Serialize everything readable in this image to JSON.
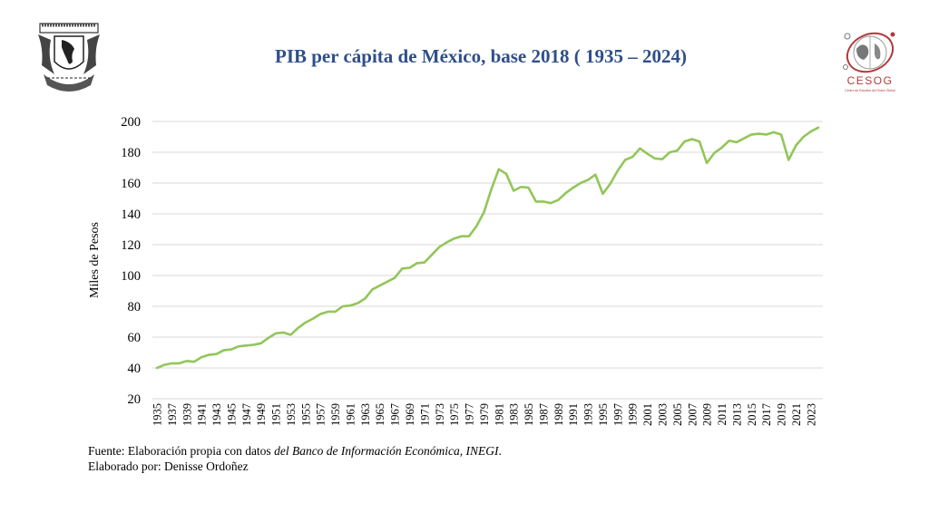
{
  "header": {
    "title": "PIB per cápita de México, base 2018 ( 1935 – 2024)",
    "left_logo": "unam-crest-logo",
    "right_logo": "cesog-logo",
    "right_logo_text": "CESOG",
    "right_logo_subtext": "Centro de Estudios del Orden Global"
  },
  "footer": {
    "source_prefix": "Fuente: Elaboración propia con datos ",
    "source_italic": "del Banco de Información Económica, INEGI",
    "source_suffix": ".",
    "author": "Elaborado por: Denisse Ordoñez"
  },
  "colors": {
    "line": "#92c65a",
    "title": "#2f4f8a",
    "grid": "#d9d9d9"
  },
  "chart_data": {
    "type": "line",
    "title": "PIB per cápita de México, base 2018 ( 1935 – 2024)",
    "xlabel": "",
    "ylabel": "Miles de Pesos",
    "ylim": [
      20,
      200
    ],
    "yticks": [
      20,
      40,
      60,
      80,
      100,
      120,
      140,
      160,
      180,
      200
    ],
    "grid": true,
    "legend": "none",
    "x": [
      1935,
      1936,
      1937,
      1938,
      1939,
      1940,
      1941,
      1942,
      1943,
      1944,
      1945,
      1946,
      1947,
      1948,
      1949,
      1950,
      1951,
      1952,
      1953,
      1954,
      1955,
      1956,
      1957,
      1958,
      1959,
      1960,
      1961,
      1962,
      1963,
      1964,
      1965,
      1966,
      1967,
      1968,
      1969,
      1970,
      1971,
      1972,
      1973,
      1974,
      1975,
      1976,
      1977,
      1978,
      1979,
      1980,
      1981,
      1982,
      1983,
      1984,
      1985,
      1986,
      1987,
      1988,
      1989,
      1990,
      1991,
      1992,
      1993,
      1994,
      1995,
      1996,
      1997,
      1998,
      1999,
      2000,
      2001,
      2002,
      2003,
      2004,
      2005,
      2006,
      2007,
      2008,
      2009,
      2010,
      2011,
      2012,
      2013,
      2014,
      2015,
      2016,
      2017,
      2018,
      2019,
      2020,
      2021,
      2022,
      2023,
      2024
    ],
    "xtick_labels": [
      "1935",
      "1937",
      "1939",
      "1941",
      "1943",
      "1945",
      "1947",
      "1949",
      "1951",
      "1953",
      "1955",
      "1957",
      "1959",
      "1961",
      "1963",
      "1965",
      "1967",
      "1969",
      "1971",
      "1973",
      "1975",
      "1977",
      "1979",
      "1981",
      "1983",
      "1985",
      "1987",
      "1989",
      "1991",
      "1993",
      "1995",
      "1997",
      "1999",
      "2001",
      "2003",
      "2005",
      "2007",
      "2009",
      "2011",
      "2013",
      "2015",
      "2017",
      "2019",
      "2021",
      "2023"
    ],
    "series": [
      {
        "name": "PIB per cápita",
        "values": [
          40,
          42,
          43,
          43,
          44.5,
          44,
          47,
          48.5,
          49,
          51.5,
          52,
          54,
          54.5,
          55,
          56,
          59.5,
          62.5,
          63,
          61.5,
          66,
          69.5,
          72,
          75,
          76.5,
          76.5,
          80,
          80.5,
          82,
          85,
          91,
          93.5,
          96,
          98.5,
          104.5,
          105,
          108,
          108.5,
          113.5,
          118.5,
          121.5,
          124,
          125.5,
          125.5,
          132,
          141,
          156,
          169,
          166,
          155,
          157.5,
          157,
          148,
          148,
          147,
          149,
          153.5,
          157,
          160,
          162,
          165.5,
          153,
          159.5,
          168,
          175,
          177,
          182.5,
          179,
          176,
          175.5,
          180,
          181,
          187,
          188.5,
          187,
          173,
          179.5,
          183,
          187.5,
          186.5,
          189,
          191.5,
          192,
          191.5,
          193,
          191.5,
          175,
          184.5,
          190,
          193.5,
          196
        ]
      }
    ]
  }
}
